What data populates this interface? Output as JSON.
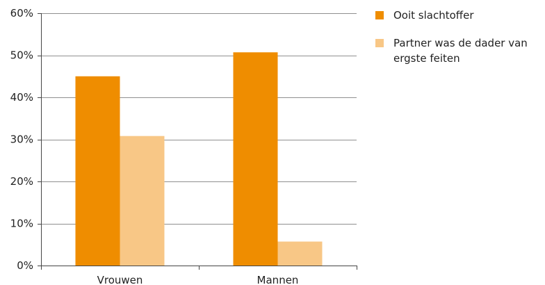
{
  "chart_data": {
    "type": "bar",
    "categories": [
      "Vrouwen",
      "Mannen"
    ],
    "series": [
      {
        "name": "Ooit slachtoffer",
        "values": [
          45,
          50.7
        ],
        "color": "#ef8d00"
      },
      {
        "name": "Partner was de dader van ergste feiten",
        "name_lines": [
          "Partner was de dader van",
          "ergste feiten"
        ],
        "values": [
          30.8,
          5.7
        ],
        "color": "#f8c786"
      }
    ],
    "ylim": [
      0,
      60
    ],
    "yticks": [
      0,
      10,
      20,
      30,
      40,
      50,
      60
    ],
    "ytick_labels": [
      "0%",
      "10%",
      "20%",
      "30%",
      "40%",
      "50%",
      "60%"
    ],
    "grid": true,
    "legend": "top-right",
    "title": "",
    "xlabel": "",
    "ylabel": ""
  }
}
